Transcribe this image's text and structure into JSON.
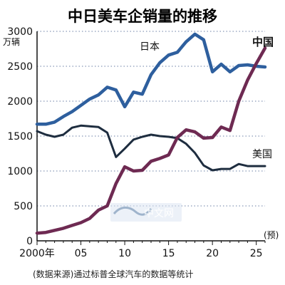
{
  "chart_data": {
    "type": "line",
    "title": "中日美车企销量的推移",
    "unit_label": "万辆",
    "x": [
      2000,
      2001,
      2002,
      2003,
      2004,
      2005,
      2006,
      2007,
      2008,
      2009,
      2010,
      2011,
      2012,
      2013,
      2014,
      2015,
      2016,
      2017,
      2018,
      2019,
      2020,
      2021,
      2022,
      2023,
      2024,
      2025,
      2026
    ],
    "xlim": [
      2000,
      2026
    ],
    "ylim": [
      0,
      3000
    ],
    "xticks": [
      {
        "value": 2000,
        "label": "2000年"
      },
      {
        "value": 2005,
        "label": "05"
      },
      {
        "value": 2010,
        "label": "10"
      },
      {
        "value": 2015,
        "label": "15"
      },
      {
        "value": 2020,
        "label": "20"
      },
      {
        "value": 2025,
        "label": "25"
      }
    ],
    "yticks": [
      0,
      500,
      1000,
      1500,
      2000,
      2500,
      3000
    ],
    "forecast_label": "(预)",
    "grid": true,
    "grid_style": "dotted-horizontal",
    "series": [
      {
        "name": "日本",
        "color": "#2e5f9e",
        "label_style": "normal",
        "values": [
          1670,
          1670,
          1700,
          1780,
          1850,
          1940,
          2030,
          2090,
          2200,
          2160,
          1920,
          2130,
          2100,
          2380,
          2550,
          2660,
          2700,
          2850,
          2960,
          2880,
          2420,
          2530,
          2420,
          2510,
          2520,
          2500,
          2490
        ]
      },
      {
        "name": "美国",
        "color": "#1e2d3f",
        "label_style": "normal",
        "values": [
          1570,
          1520,
          1490,
          1520,
          1620,
          1650,
          1640,
          1630,
          1550,
          1200,
          1320,
          1450,
          1490,
          1520,
          1500,
          1490,
          1470,
          1390,
          1260,
          1080,
          1010,
          1030,
          1030,
          1100,
          1070,
          1070,
          1070
        ]
      },
      {
        "name": "中国",
        "color": "#6e2a52",
        "label_style": "bold",
        "values": [
          110,
          120,
          150,
          180,
          220,
          260,
          320,
          440,
          500,
          820,
          1060,
          1000,
          1010,
          1140,
          1180,
          1230,
          1480,
          1590,
          1560,
          1470,
          1480,
          1630,
          1580,
          2000,
          2300,
          2540,
          2760
        ]
      }
    ]
  },
  "source_note": "(数据来源)通过标普全球汽车的数据等统计",
  "watermark": {
    "text": "中文网",
    "accent": "#dce6f2"
  }
}
